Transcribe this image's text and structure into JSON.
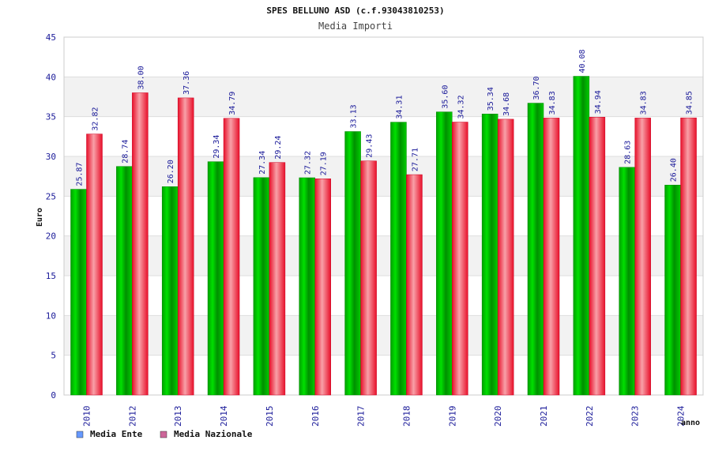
{
  "chart_data": {
    "type": "bar",
    "title": "SPES BELLUNO ASD (c.f.93043810253)",
    "subtitle": "Media Importi",
    "ylabel": "Euro",
    "xlabel": "anno",
    "ylim": [
      0,
      45
    ],
    "yticks": [
      0,
      5,
      10,
      15,
      20,
      25,
      30,
      35,
      40,
      45
    ],
    "grid": true,
    "legend_position": "bottom-left",
    "categories": [
      "2010",
      "2012",
      "2013",
      "2014",
      "2015",
      "2016",
      "2017",
      "2018",
      "2019",
      "2020",
      "2021",
      "2022",
      "2023",
      "2024"
    ],
    "series": [
      {
        "name": "Media Ente",
        "color": "#00cc00",
        "legend_color": "#6699ff",
        "values": [
          25.87,
          28.74,
          26.2,
          29.34,
          27.34,
          27.32,
          33.13,
          34.31,
          35.6,
          35.34,
          36.7,
          40.08,
          28.63,
          26.4
        ],
        "labels": [
          "25.87",
          "28.74",
          "26.20",
          "29.34",
          "27.34",
          "27.32",
          "33.13",
          "34.31",
          "35.60",
          "35.34",
          "36.70",
          "40.08",
          "28.63",
          "26.40"
        ]
      },
      {
        "name": "Media Nazionale",
        "color": "#ee1133",
        "legend_color": "#cc6699",
        "values": [
          32.82,
          38.0,
          37.36,
          34.79,
          29.24,
          27.19,
          29.43,
          27.71,
          34.32,
          34.68,
          34.83,
          34.94,
          34.83,
          34.85
        ],
        "labels": [
          "32.82",
          "38.00",
          "37.36",
          "34.79",
          "29.24",
          "27.19",
          "29.43",
          "27.71",
          "34.32",
          "34.68",
          "34.83",
          "34.94",
          "34.83",
          "34.85"
        ]
      }
    ]
  }
}
